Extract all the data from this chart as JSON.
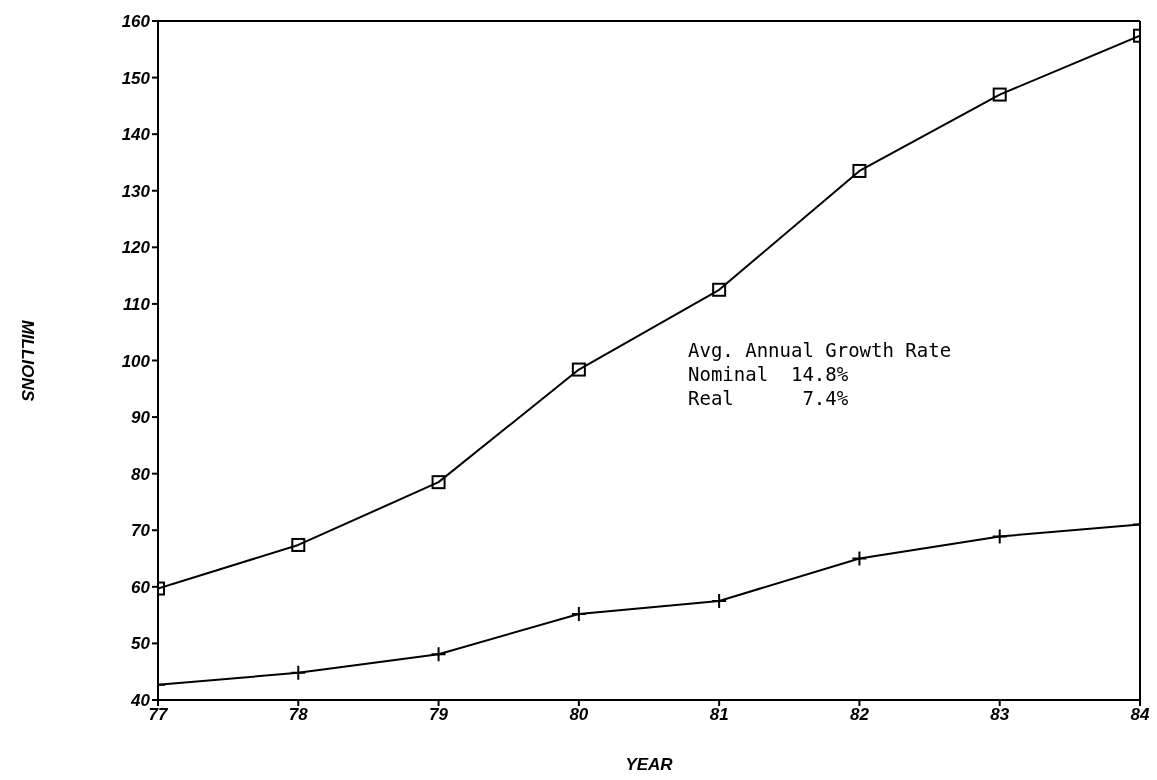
{
  "chart_data": {
    "type": "line",
    "xlabel": "YEAR",
    "ylabel": "MILLIONS",
    "categories": [
      "77",
      "78",
      "79",
      "80",
      "81",
      "82",
      "83",
      "84"
    ],
    "series": [
      {
        "color": "#000000",
        "marker": "square",
        "values": [
          59.7,
          67.4,
          78.5,
          98.4,
          112.5,
          133.5,
          147,
          157.4
        ]
      },
      {
        "color": "#000000",
        "marker": "cross",
        "values": [
          42.7,
          44.8,
          48.1,
          55.2,
          57.5,
          65,
          68.9,
          71
        ]
      }
    ],
    "ylim": [
      40,
      160
    ],
    "yticks": [
      40,
      50,
      60,
      70,
      80,
      90,
      100,
      110,
      120,
      130,
      140,
      150,
      160
    ],
    "line_style": "solid",
    "annotations": [
      "Avg. Annual Growth Rate",
      "Nominal  14.8%",
      "Real      7.4%"
    ]
  }
}
